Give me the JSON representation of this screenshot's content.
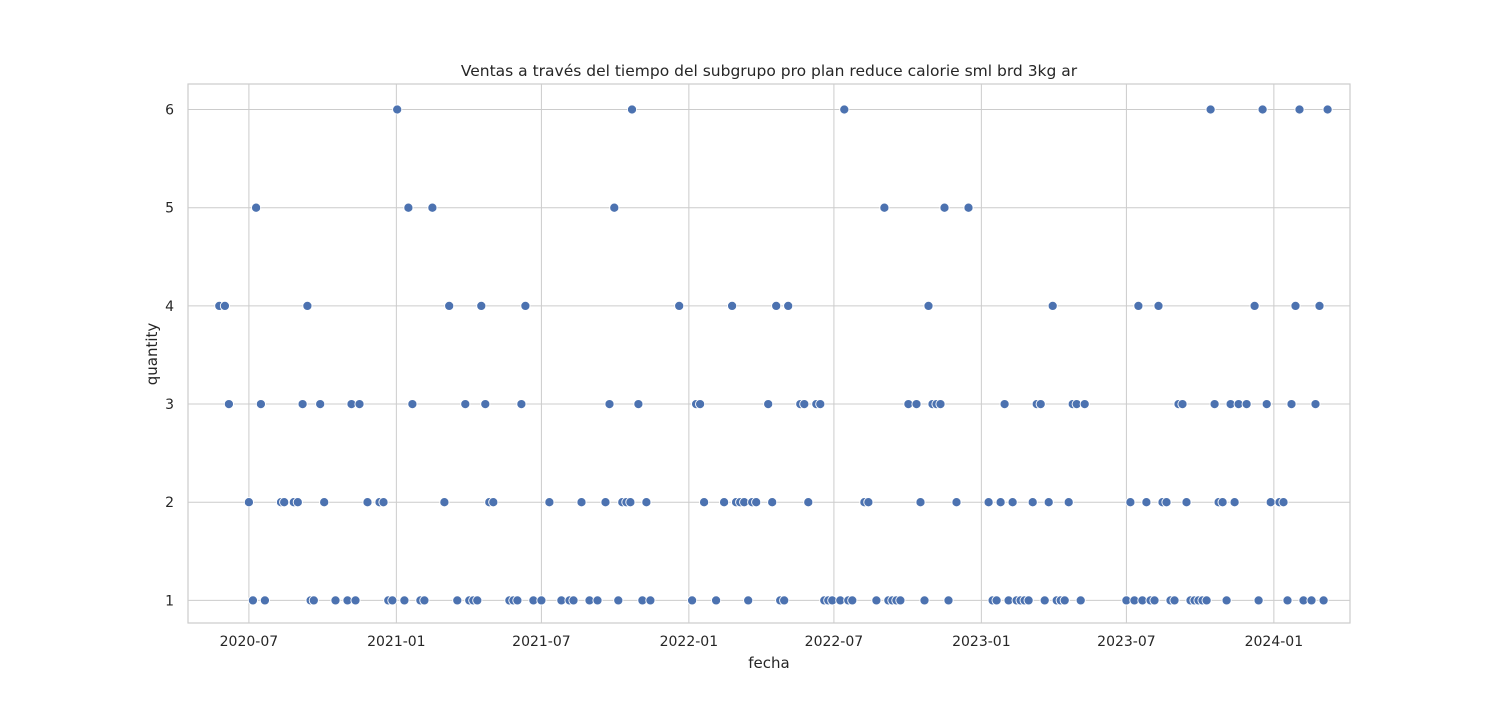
{
  "chart_data": {
    "type": "scatter",
    "title": "Ventas a través del tiempo del subgrupo pro plan reduce calorie sml brd 3kg ar",
    "xlabel": "fecha",
    "ylabel": "quantity",
    "x_ticks": [
      "2020-07",
      "2021-01",
      "2021-07",
      "2022-01",
      "2022-07",
      "2023-01",
      "2023-07",
      "2024-01"
    ],
    "y_ticks": [
      "1",
      "2",
      "3",
      "4",
      "5",
      "6"
    ],
    "xlim": [
      "2020-04-16",
      "2024-04-05"
    ],
    "ylim": [
      0.77,
      6.26
    ],
    "grid": true,
    "marker_color": "#4c72b0",
    "points": [
      [
        "2020-05-25",
        4
      ],
      [
        "2020-06-01",
        4
      ],
      [
        "2020-06-06",
        3
      ],
      [
        "2020-07-01",
        2
      ],
      [
        "2020-07-06",
        1
      ],
      [
        "2020-07-10",
        5
      ],
      [
        "2020-07-16",
        3
      ],
      [
        "2020-07-21",
        1
      ],
      [
        "2020-08-10",
        2
      ],
      [
        "2020-08-14",
        2
      ],
      [
        "2020-08-26",
        2
      ],
      [
        "2020-08-31",
        2
      ],
      [
        "2020-09-06",
        3
      ],
      [
        "2020-09-12",
        4
      ],
      [
        "2020-09-16",
        1
      ],
      [
        "2020-09-20",
        1
      ],
      [
        "2020-09-28",
        3
      ],
      [
        "2020-10-03",
        2
      ],
      [
        "2020-10-17",
        1
      ],
      [
        "2020-11-01",
        1
      ],
      [
        "2020-11-06",
        3
      ],
      [
        "2020-11-11",
        1
      ],
      [
        "2020-11-16",
        3
      ],
      [
        "2020-11-26",
        2
      ],
      [
        "2020-12-11",
        2
      ],
      [
        "2020-12-16",
        2
      ],
      [
        "2020-12-22",
        1
      ],
      [
        "2020-12-27",
        1
      ],
      [
        "2021-01-02",
        6
      ],
      [
        "2021-01-11",
        1
      ],
      [
        "2021-01-16",
        5
      ],
      [
        "2021-01-21",
        3
      ],
      [
        "2021-01-31",
        1
      ],
      [
        "2021-02-05",
        1
      ],
      [
        "2021-02-15",
        5
      ],
      [
        "2021-03-02",
        2
      ],
      [
        "2021-03-08",
        4
      ],
      [
        "2021-03-18",
        1
      ],
      [
        "2021-03-28",
        3
      ],
      [
        "2021-04-02",
        1
      ],
      [
        "2021-04-07",
        1
      ],
      [
        "2021-04-12",
        1
      ],
      [
        "2021-04-17",
        4
      ],
      [
        "2021-04-22",
        3
      ],
      [
        "2021-04-27",
        2
      ],
      [
        "2021-05-02",
        2
      ],
      [
        "2021-05-22",
        1
      ],
      [
        "2021-05-27",
        1
      ],
      [
        "2021-06-01",
        1
      ],
      [
        "2021-06-06",
        3
      ],
      [
        "2021-06-11",
        4
      ],
      [
        "2021-06-21",
        1
      ],
      [
        "2021-07-01",
        1
      ],
      [
        "2021-07-11",
        2
      ],
      [
        "2021-07-26",
        1
      ],
      [
        "2021-08-05",
        1
      ],
      [
        "2021-08-10",
        1
      ],
      [
        "2021-08-20",
        2
      ],
      [
        "2021-08-30",
        1
      ],
      [
        "2021-09-09",
        1
      ],
      [
        "2021-09-19",
        2
      ],
      [
        "2021-09-24",
        3
      ],
      [
        "2021-09-30",
        5
      ],
      [
        "2021-10-05",
        1
      ],
      [
        "2021-10-10",
        2
      ],
      [
        "2021-10-15",
        2
      ],
      [
        "2021-10-20",
        2
      ],
      [
        "2021-10-22",
        6
      ],
      [
        "2021-10-30",
        3
      ],
      [
        "2021-11-04",
        1
      ],
      [
        "2021-11-09",
        2
      ],
      [
        "2021-11-14",
        1
      ],
      [
        "2021-12-20",
        4
      ],
      [
        "2022-01-05",
        1
      ],
      [
        "2022-01-10",
        3
      ],
      [
        "2022-01-15",
        3
      ],
      [
        "2022-01-20",
        2
      ],
      [
        "2022-02-04",
        1
      ],
      [
        "2022-02-14",
        2
      ],
      [
        "2022-02-24",
        4
      ],
      [
        "2022-03-01",
        2
      ],
      [
        "2022-03-06",
        2
      ],
      [
        "2022-03-11",
        2
      ],
      [
        "2022-03-16",
        1
      ],
      [
        "2022-03-21",
        2
      ],
      [
        "2022-03-26",
        2
      ],
      [
        "2022-04-10",
        3
      ],
      [
        "2022-04-15",
        2
      ],
      [
        "2022-04-20",
        4
      ],
      [
        "2022-04-25",
        1
      ],
      [
        "2022-04-30",
        1
      ],
      [
        "2022-05-05",
        4
      ],
      [
        "2022-05-20",
        3
      ],
      [
        "2022-05-25",
        3
      ],
      [
        "2022-05-30",
        2
      ],
      [
        "2022-06-09",
        3
      ],
      [
        "2022-06-14",
        3
      ],
      [
        "2022-06-19",
        1
      ],
      [
        "2022-06-24",
        1
      ],
      [
        "2022-06-29",
        1
      ],
      [
        "2022-07-09",
        1
      ],
      [
        "2022-07-14",
        6
      ],
      [
        "2022-07-19",
        1
      ],
      [
        "2022-07-24",
        1
      ],
      [
        "2022-08-08",
        2
      ],
      [
        "2022-08-13",
        2
      ],
      [
        "2022-08-23",
        1
      ],
      [
        "2022-09-02",
        5
      ],
      [
        "2022-09-07",
        1
      ],
      [
        "2022-09-12",
        1
      ],
      [
        "2022-09-17",
        1
      ],
      [
        "2022-09-22",
        1
      ],
      [
        "2022-10-02",
        3
      ],
      [
        "2022-10-12",
        3
      ],
      [
        "2022-10-17",
        2
      ],
      [
        "2022-10-22",
        1
      ],
      [
        "2022-10-27",
        4
      ],
      [
        "2022-11-01",
        3
      ],
      [
        "2022-11-06",
        3
      ],
      [
        "2022-11-11",
        3
      ],
      [
        "2022-11-16",
        5
      ],
      [
        "2022-11-21",
        1
      ],
      [
        "2022-12-01",
        2
      ],
      [
        "2022-12-16",
        5
      ],
      [
        "2023-01-10",
        2
      ],
      [
        "2023-01-15",
        1
      ],
      [
        "2023-01-20",
        1
      ],
      [
        "2023-01-25",
        2
      ],
      [
        "2023-01-30",
        3
      ],
      [
        "2023-02-04",
        1
      ],
      [
        "2023-02-09",
        2
      ],
      [
        "2023-02-14",
        1
      ],
      [
        "2023-02-19",
        1
      ],
      [
        "2023-02-24",
        1
      ],
      [
        "2023-03-01",
        1
      ],
      [
        "2023-03-06",
        2
      ],
      [
        "2023-03-11",
        3
      ],
      [
        "2023-03-16",
        3
      ],
      [
        "2023-03-21",
        1
      ],
      [
        "2023-03-26",
        2
      ],
      [
        "2023-03-31",
        4
      ],
      [
        "2023-04-05",
        1
      ],
      [
        "2023-04-10",
        1
      ],
      [
        "2023-04-15",
        1
      ],
      [
        "2023-04-20",
        2
      ],
      [
        "2023-04-25",
        3
      ],
      [
        "2023-04-30",
        3
      ],
      [
        "2023-05-05",
        1
      ],
      [
        "2023-05-10",
        3
      ],
      [
        "2023-07-01",
        1
      ],
      [
        "2023-07-06",
        2
      ],
      [
        "2023-07-11",
        1
      ],
      [
        "2023-07-16",
        4
      ],
      [
        "2023-07-21",
        1
      ],
      [
        "2023-07-26",
        2
      ],
      [
        "2023-07-31",
        1
      ],
      [
        "2023-08-05",
        1
      ],
      [
        "2023-08-10",
        4
      ],
      [
        "2023-08-15",
        2
      ],
      [
        "2023-08-20",
        2
      ],
      [
        "2023-08-25",
        1
      ],
      [
        "2023-08-30",
        1
      ],
      [
        "2023-09-04",
        3
      ],
      [
        "2023-09-09",
        3
      ],
      [
        "2023-09-14",
        2
      ],
      [
        "2023-09-19",
        1
      ],
      [
        "2023-09-24",
        1
      ],
      [
        "2023-09-29",
        1
      ],
      [
        "2023-10-04",
        1
      ],
      [
        "2023-10-09",
        1
      ],
      [
        "2023-10-14",
        6
      ],
      [
        "2023-10-19",
        3
      ],
      [
        "2023-10-24",
        2
      ],
      [
        "2023-10-29",
        2
      ],
      [
        "2023-11-03",
        1
      ],
      [
        "2023-11-08",
        3
      ],
      [
        "2023-11-13",
        2
      ],
      [
        "2023-11-18",
        3
      ],
      [
        "2023-11-28",
        3
      ],
      [
        "2023-12-08",
        4
      ],
      [
        "2023-12-13",
        1
      ],
      [
        "2023-12-18",
        6
      ],
      [
        "2023-12-23",
        3
      ],
      [
        "2023-12-28",
        2
      ],
      [
        "2024-01-08",
        2
      ],
      [
        "2024-01-13",
        2
      ],
      [
        "2024-01-18",
        1
      ],
      [
        "2024-01-23",
        3
      ],
      [
        "2024-01-28",
        4
      ],
      [
        "2024-02-02",
        6
      ],
      [
        "2024-02-07",
        1
      ],
      [
        "2024-02-17",
        1
      ],
      [
        "2024-02-22",
        3
      ],
      [
        "2024-02-27",
        4
      ],
      [
        "2024-03-03",
        1
      ],
      [
        "2024-03-08",
        6
      ]
    ]
  }
}
